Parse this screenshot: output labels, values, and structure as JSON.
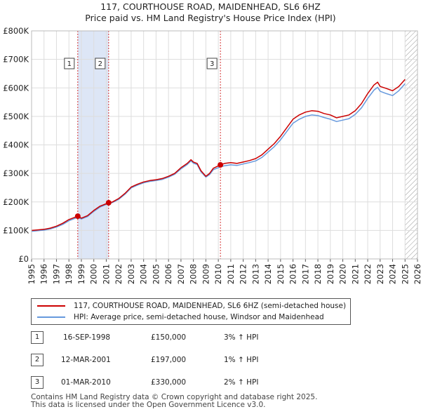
{
  "title_line1": "117, COURTHOUSE ROAD, MAIDENHEAD, SL6 6HZ",
  "title_line2": "Price paid vs. HM Land Registry's House Price Index (HPI)",
  "colors": {
    "property": "#cc0000",
    "hpi": "#6699dd",
    "shade": "#dde6f6",
    "grid": "#dddddd",
    "marker_line": "#cc0000",
    "future_hatch": "#999999"
  },
  "legend": {
    "property_label": "117, COURTHOUSE ROAD, MAIDENHEAD, SL6 6HZ (semi-detached house)",
    "hpi_label": "HPI: Average price, semi-detached house, Windsor and Maidenhead"
  },
  "sales": [
    {
      "num": "1",
      "date": "16-SEP-1998",
      "price": "£150,000",
      "hpi": "3% ↑ HPI"
    },
    {
      "num": "2",
      "date": "12-MAR-2001",
      "price": "£197,000",
      "hpi": "1% ↑ HPI"
    },
    {
      "num": "3",
      "date": "01-MAR-2010",
      "price": "£330,000",
      "hpi": "2% ↑ HPI"
    }
  ],
  "footer": {
    "line1": "Contains HM Land Registry data © Crown copyright and database right 2025.",
    "line2": "This data is licensed under the Open Government Licence v3.0."
  },
  "chart_data": {
    "type": "line",
    "title": "Price paid vs. HM Land Registry's House Price Index (HPI)",
    "xlabel": "",
    "ylabel": "",
    "xlim": [
      1995,
      2026
    ],
    "ylim": [
      0,
      800000
    ],
    "x_ticks": [
      1995,
      1996,
      1997,
      1998,
      1999,
      2000,
      2001,
      2002,
      2003,
      2004,
      2005,
      2006,
      2007,
      2008,
      2009,
      2010,
      2011,
      2012,
      2013,
      2014,
      2015,
      2016,
      2017,
      2018,
      2019,
      2020,
      2021,
      2022,
      2023,
      2024,
      2025,
      2026
    ],
    "y_ticks": [
      0,
      100000,
      200000,
      300000,
      400000,
      500000,
      600000,
      700000,
      800000
    ],
    "y_tick_labels": [
      "£0",
      "£100K",
      "£200K",
      "£300K",
      "£400K",
      "£500K",
      "£600K",
      "£700K",
      "£800K"
    ],
    "grid": true,
    "shaded_ranges": [
      [
        1998.71,
        2001.19
      ]
    ],
    "future_from": 2025.0,
    "series": [
      {
        "name": "117, COURTHOUSE ROAD, MAIDENHEAD, SL6 6HZ (semi-detached house)",
        "x": [
          1995.0,
          1995.5,
          1996.0,
          1996.5,
          1997.0,
          1997.5,
          1998.0,
          1998.71,
          1999.0,
          1999.5,
          2000.0,
          2000.5,
          2001.19,
          2001.5,
          2002.0,
          2002.5,
          2003.0,
          2003.5,
          2004.0,
          2004.5,
          2005.0,
          2005.5,
          2006.0,
          2006.5,
          2007.0,
          2007.5,
          2007.8,
          2008.0,
          2008.3,
          2008.6,
          2009.0,
          2009.3,
          2009.6,
          2010.17,
          2010.5,
          2011.0,
          2011.5,
          2012.0,
          2012.5,
          2013.0,
          2013.5,
          2014.0,
          2014.5,
          2015.0,
          2015.5,
          2016.0,
          2016.5,
          2017.0,
          2017.5,
          2018.0,
          2018.5,
          2019.0,
          2019.5,
          2020.0,
          2020.5,
          2021.0,
          2021.5,
          2022.0,
          2022.5,
          2022.8,
          2023.0,
          2023.5,
          2024.0,
          2024.5,
          2025.0
        ],
        "y": [
          100000,
          102000,
          104000,
          108000,
          115000,
          125000,
          138000,
          150000,
          143000,
          152000,
          170000,
          185000,
          197000,
          200000,
          212000,
          230000,
          252000,
          262000,
          270000,
          275000,
          278000,
          282000,
          290000,
          300000,
          320000,
          335000,
          348000,
          340000,
          335000,
          310000,
          290000,
          300000,
          318000,
          330000,
          335000,
          338000,
          335000,
          340000,
          345000,
          352000,
          365000,
          385000,
          405000,
          430000,
          460000,
          490000,
          505000,
          515000,
          520000,
          518000,
          510000,
          505000,
          495000,
          500000,
          505000,
          520000,
          545000,
          580000,
          610000,
          620000,
          605000,
          598000,
          590000,
          605000,
          630000
        ]
      },
      {
        "name": "HPI: Average price, semi-detached house, Windsor and Maidenhead",
        "x": [
          1995.0,
          1995.5,
          1996.0,
          1996.5,
          1997.0,
          1997.5,
          1998.0,
          1998.71,
          1999.0,
          1999.5,
          2000.0,
          2000.5,
          2001.19,
          2001.5,
          2002.0,
          2002.5,
          2003.0,
          2003.5,
          2004.0,
          2004.5,
          2005.0,
          2005.5,
          2006.0,
          2006.5,
          2007.0,
          2007.5,
          2007.8,
          2008.0,
          2008.3,
          2008.6,
          2009.0,
          2009.3,
          2009.6,
          2010.17,
          2010.5,
          2011.0,
          2011.5,
          2012.0,
          2012.5,
          2013.0,
          2013.5,
          2014.0,
          2014.5,
          2015.0,
          2015.5,
          2016.0,
          2016.5,
          2017.0,
          2017.5,
          2018.0,
          2018.5,
          2019.0,
          2019.5,
          2020.0,
          2020.5,
          2021.0,
          2021.5,
          2022.0,
          2022.5,
          2022.8,
          2023.0,
          2023.5,
          2024.0,
          2024.5,
          2025.0
        ],
        "y": [
          97000,
          99000,
          101000,
          105000,
          112000,
          121000,
          134000,
          146000,
          140000,
          149000,
          167000,
          182000,
          195000,
          198000,
          209000,
          227000,
          249000,
          259000,
          267000,
          272000,
          275000,
          279000,
          287000,
          297000,
          316000,
          331000,
          344000,
          336000,
          331000,
          306000,
          287000,
          296000,
          313000,
          323000,
          327000,
          330000,
          328000,
          333000,
          338000,
          344000,
          356000,
          375000,
          394000,
          418000,
          447000,
          476000,
          490000,
          500000,
          505000,
          503000,
          496000,
          490000,
          482000,
          487000,
          492000,
          507000,
          530000,
          563000,
          592000,
          602000,
          588000,
          580000,
          573000,
          590000,
          615000
        ]
      }
    ],
    "sale_points": [
      {
        "label": "1",
        "x": 1998.71,
        "y": 150000
      },
      {
        "label": "2",
        "x": 2001.19,
        "y": 197000
      },
      {
        "label": "3",
        "x": 2010.17,
        "y": 330000
      }
    ]
  }
}
